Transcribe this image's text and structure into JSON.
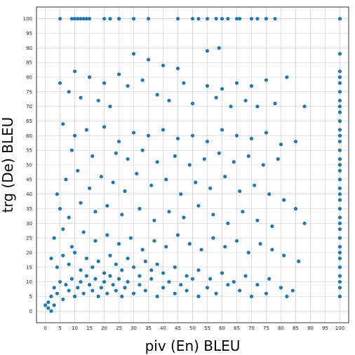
{
  "chart_data": {
    "type": "scatter",
    "title": "",
    "xlabel": "piv (En) BLEU",
    "ylabel": "trg (De) BLEU",
    "xlim": [
      -3,
      103
    ],
    "ylim": [
      -4,
      104
    ],
    "xticks": [
      0,
      5,
      10,
      15,
      20,
      25,
      30,
      35,
      40,
      45,
      50,
      55,
      60,
      65,
      70,
      75,
      80,
      85,
      90,
      95,
      100
    ],
    "yticks": [
      0,
      5,
      10,
      15,
      20,
      25,
      30,
      35,
      40,
      45,
      50,
      55,
      60,
      65,
      70,
      75,
      80,
      85,
      90,
      95,
      100
    ],
    "grid": true,
    "marker_color": "#1f77b4",
    "points": [
      [
        5,
        100
      ],
      [
        9,
        100
      ],
      [
        10,
        100
      ],
      [
        11,
        100
      ],
      [
        12,
        100
      ],
      [
        13,
        100
      ],
      [
        14,
        100
      ],
      [
        15,
        100
      ],
      [
        20,
        100
      ],
      [
        22,
        100
      ],
      [
        25,
        100
      ],
      [
        30,
        100
      ],
      [
        35,
        100
      ],
      [
        45,
        100
      ],
      [
        50,
        100
      ],
      [
        52,
        100
      ],
      [
        55,
        100
      ],
      [
        58,
        100
      ],
      [
        60,
        100
      ],
      [
        62,
        100
      ],
      [
        65,
        100
      ],
      [
        66,
        100
      ],
      [
        70,
        100
      ],
      [
        72,
        100
      ],
      [
        75,
        100
      ],
      [
        78,
        100
      ],
      [
        100,
        100
      ],
      [
        59,
        90
      ],
      [
        30,
        88
      ],
      [
        100,
        88
      ],
      [
        55,
        89
      ],
      [
        35,
        86
      ],
      [
        40,
        84
      ],
      [
        45,
        83
      ],
      [
        10,
        82
      ],
      [
        25,
        81
      ],
      [
        15,
        80
      ],
      [
        33,
        79
      ],
      [
        5,
        78
      ],
      [
        20,
        78
      ],
      [
        28,
        77
      ],
      [
        47,
        78
      ],
      [
        55,
        77
      ],
      [
        60,
        76
      ],
      [
        65,
        78
      ],
      [
        70,
        77
      ],
      [
        75,
        79
      ],
      [
        82,
        80
      ],
      [
        88,
        70
      ],
      [
        8,
        75
      ],
      [
        12,
        73
      ],
      [
        18,
        72
      ],
      [
        22,
        70
      ],
      [
        38,
        74
      ],
      [
        42,
        72
      ],
      [
        50,
        71
      ],
      [
        58,
        73
      ],
      [
        63,
        70
      ],
      [
        68,
        72
      ],
      [
        72,
        70
      ],
      [
        78,
        71
      ],
      [
        6,
        64
      ],
      [
        10,
        60
      ],
      [
        14,
        62
      ],
      [
        20,
        63
      ],
      [
        25,
        58
      ],
      [
        30,
        61
      ],
      [
        35,
        60
      ],
      [
        40,
        62
      ],
      [
        45,
        59
      ],
      [
        50,
        60
      ],
      [
        55,
        58
      ],
      [
        60,
        62
      ],
      [
        65,
        60
      ],
      [
        70,
        59
      ],
      [
        75,
        61
      ],
      [
        80,
        57
      ],
      [
        85,
        58
      ],
      [
        9,
        55
      ],
      [
        16,
        53
      ],
      [
        24,
        54
      ],
      [
        28,
        52
      ],
      [
        33,
        55
      ],
      [
        38,
        51
      ],
      [
        44,
        53
      ],
      [
        49,
        50
      ],
      [
        54,
        52
      ],
      [
        59,
        54
      ],
      [
        64,
        51
      ],
      [
        69,
        53
      ],
      [
        74,
        50
      ],
      [
        79,
        52
      ],
      [
        4,
        40
      ],
      [
        7,
        45
      ],
      [
        11,
        48
      ],
      [
        15,
        42
      ],
      [
        19,
        46
      ],
      [
        23,
        44
      ],
      [
        27,
        41
      ],
      [
        31,
        47
      ],
      [
        36,
        43
      ],
      [
        41,
        45
      ],
      [
        46,
        40
      ],
      [
        51,
        44
      ],
      [
        56,
        42
      ],
      [
        61,
        46
      ],
      [
        66,
        41
      ],
      [
        71,
        43
      ],
      [
        76,
        40
      ],
      [
        81,
        38
      ],
      [
        85,
        35
      ],
      [
        88,
        30
      ],
      [
        5,
        35
      ],
      [
        8,
        32
      ],
      [
        12,
        37
      ],
      [
        17,
        34
      ],
      [
        21,
        36
      ],
      [
        26,
        33
      ],
      [
        32,
        35
      ],
      [
        37,
        31
      ],
      [
        42,
        34
      ],
      [
        47,
        32
      ],
      [
        52,
        36
      ],
      [
        57,
        33
      ],
      [
        62,
        30
      ],
      [
        67,
        34
      ],
      [
        72,
        31
      ],
      [
        77,
        29
      ],
      [
        3,
        25
      ],
      [
        6,
        28
      ],
      [
        9,
        22
      ],
      [
        13,
        27
      ],
      [
        17,
        24
      ],
      [
        21,
        26
      ],
      [
        25,
        23
      ],
      [
        29,
        25
      ],
      [
        33,
        21
      ],
      [
        37,
        24
      ],
      [
        41,
        22
      ],
      [
        45,
        26
      ],
      [
        49,
        23
      ],
      [
        53,
        21
      ],
      [
        57,
        25
      ],
      [
        61,
        22
      ],
      [
        65,
        24
      ],
      [
        69,
        20
      ],
      [
        73,
        23
      ],
      [
        77,
        21
      ],
      [
        81,
        19
      ],
      [
        86,
        17
      ],
      [
        2,
        18
      ],
      [
        4,
        15
      ],
      [
        6,
        19
      ],
      [
        8,
        16
      ],
      [
        10,
        20
      ],
      [
        12,
        14
      ],
      [
        14,
        18
      ],
      [
        16,
        15
      ],
      [
        18,
        17
      ],
      [
        20,
        13
      ],
      [
        22,
        19
      ],
      [
        24,
        16
      ],
      [
        26,
        14
      ],
      [
        28,
        18
      ],
      [
        30,
        15
      ],
      [
        32,
        12
      ],
      [
        34,
        17
      ],
      [
        36,
        14
      ],
      [
        38,
        16
      ],
      [
        40,
        13
      ],
      [
        44,
        15
      ],
      [
        48,
        12
      ],
      [
        52,
        14
      ],
      [
        56,
        11
      ],
      [
        60,
        13
      ],
      [
        64,
        10
      ],
      [
        68,
        12
      ],
      [
        72,
        9
      ],
      [
        76,
        11
      ],
      [
        80,
        8
      ],
      [
        84,
        7
      ],
      [
        1,
        3
      ],
      [
        2,
        5
      ],
      [
        3,
        8
      ],
      [
        4,
        6
      ],
      [
        5,
        10
      ],
      [
        6,
        4
      ],
      [
        7,
        9
      ],
      [
        8,
        7
      ],
      [
        9,
        11
      ],
      [
        10,
        5
      ],
      [
        11,
        8
      ],
      [
        12,
        10
      ],
      [
        13,
        6
      ],
      [
        14,
        12
      ],
      [
        15,
        9
      ],
      [
        16,
        7
      ],
      [
        17,
        11
      ],
      [
        18,
        5
      ],
      [
        19,
        8
      ],
      [
        20,
        10
      ],
      [
        21,
        6
      ],
      [
        22,
        12
      ],
      [
        23,
        9
      ],
      [
        24,
        7
      ],
      [
        25,
        11
      ],
      [
        26,
        5
      ],
      [
        27,
        8
      ],
      [
        28,
        10
      ],
      [
        30,
        6
      ],
      [
        32,
        9
      ],
      [
        34,
        7
      ],
      [
        36,
        11
      ],
      [
        38,
        5
      ],
      [
        40,
        8
      ],
      [
        42,
        10
      ],
      [
        44,
        6
      ],
      [
        46,
        9
      ],
      [
        48,
        7
      ],
      [
        50,
        11
      ],
      [
        52,
        5
      ],
      [
        55,
        8
      ],
      [
        58,
        6
      ],
      [
        62,
        9
      ],
      [
        66,
        7
      ],
      [
        70,
        5
      ],
      [
        75,
        6
      ],
      [
        82,
        5
      ],
      [
        0,
        2
      ],
      [
        1,
        1
      ],
      [
        2,
        0
      ],
      [
        3,
        2
      ],
      [
        100,
        5
      ],
      [
        100,
        8
      ],
      [
        100,
        10
      ],
      [
        100,
        12
      ],
      [
        100,
        15
      ],
      [
        100,
        18
      ],
      [
        100,
        20
      ],
      [
        100,
        22
      ],
      [
        100,
        25
      ],
      [
        100,
        28
      ],
      [
        100,
        30
      ],
      [
        100,
        32
      ],
      [
        100,
        35
      ],
      [
        100,
        38
      ],
      [
        100,
        40
      ],
      [
        100,
        42
      ],
      [
        100,
        45
      ],
      [
        100,
        48
      ],
      [
        100,
        50
      ],
      [
        100,
        52
      ],
      [
        100,
        55
      ],
      [
        100,
        58
      ],
      [
        100,
        60
      ],
      [
        100,
        62
      ],
      [
        100,
        65
      ],
      [
        100,
        68
      ],
      [
        100,
        70
      ],
      [
        100,
        72
      ],
      [
        100,
        75
      ],
      [
        100,
        78
      ],
      [
        100,
        80
      ],
      [
        100,
        82
      ]
    ]
  }
}
